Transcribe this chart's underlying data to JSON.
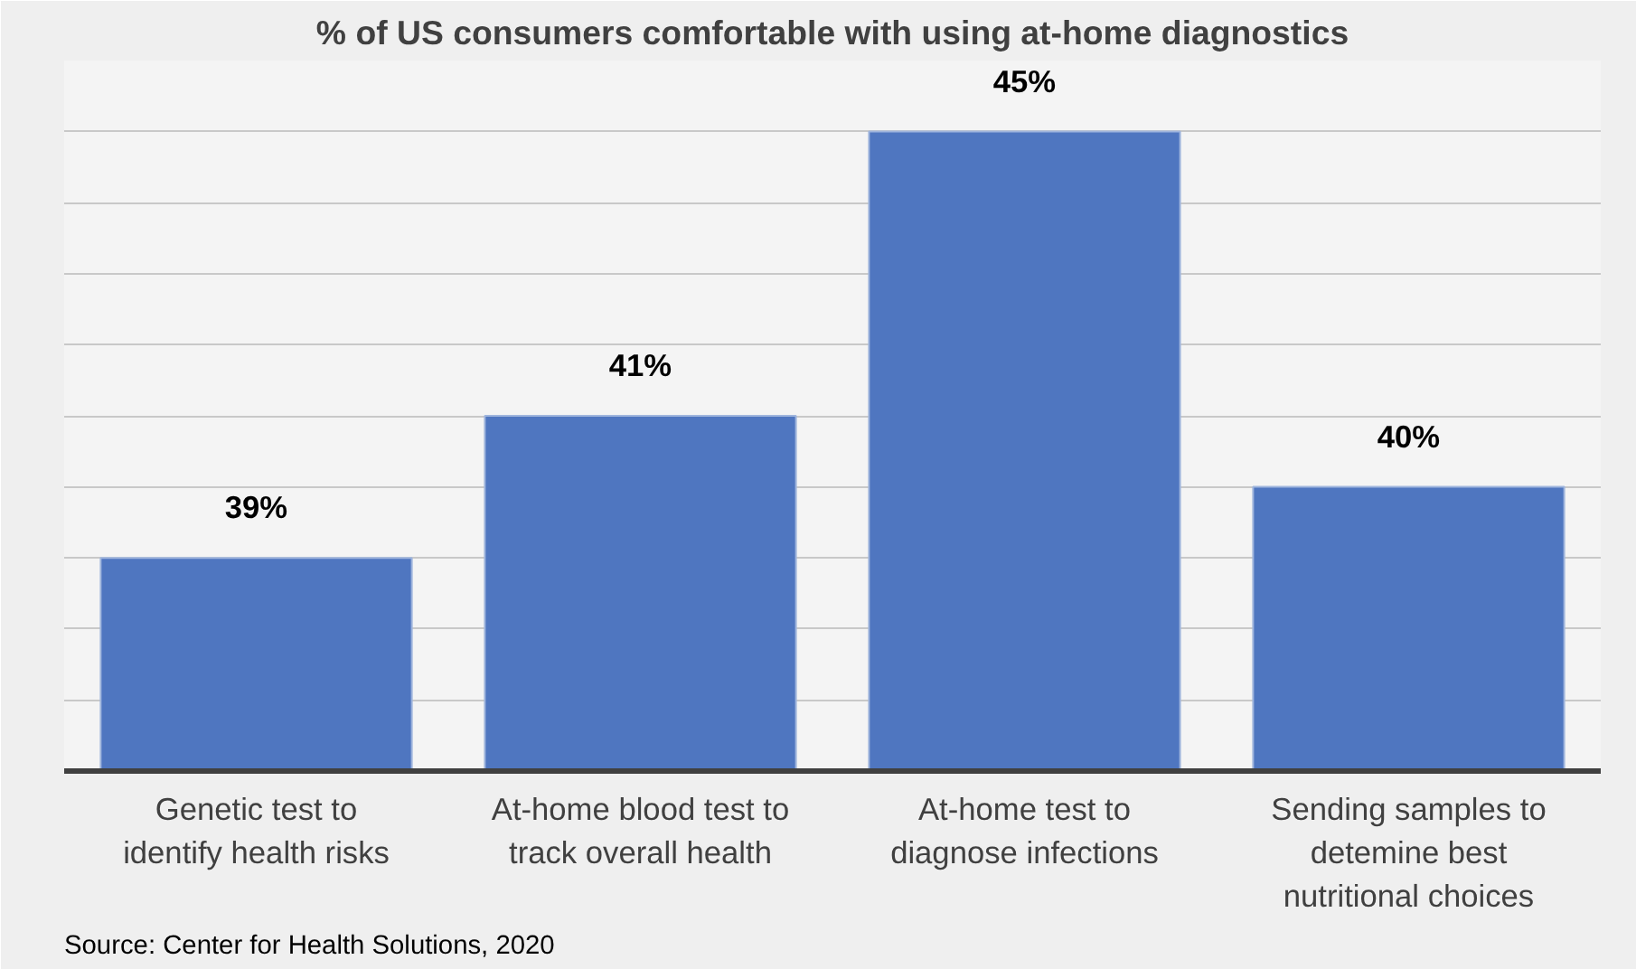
{
  "chart_data": {
    "type": "bar",
    "title": "% of US consumers comfortable with using at-home diagnostics",
    "categories": [
      "Genetic test to identify health risks",
      "At-home blood test to track overall health",
      "At-home test to diagnose infections",
      "Sending samples to detemine best nutritional choices"
    ],
    "values": [
      39,
      41,
      45,
      40
    ],
    "color": "#4f76c0",
    "value_labels": [
      "39%",
      "41%",
      "45%",
      "40%"
    ],
    "ylim": [
      36,
      46
    ],
    "yticks": [
      {
        "value": 37,
        "label": null
      },
      {
        "value": 38,
        "label": null
      },
      {
        "value": 39,
        "label": null
      },
      {
        "value": 40,
        "label": null
      },
      {
        "value": 41,
        "label": null
      },
      {
        "value": 42,
        "label": null
      },
      {
        "value": 43,
        "label": null
      },
      {
        "value": 44,
        "label": null
      },
      {
        "value": 45,
        "label": null
      },
      {
        "value": 46,
        "label": null
      }
    ],
    "tick_labels": "x",
    "grid": "y",
    "annotations": [
      "Source: Center for Health Solutions, 2020"
    ]
  }
}
